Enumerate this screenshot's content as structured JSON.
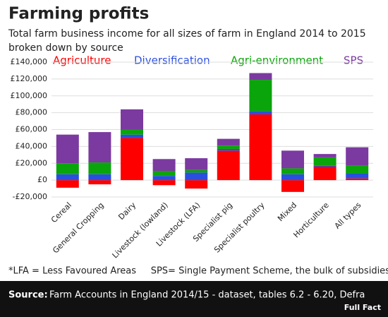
{
  "chart_data": {
    "type": "stacked_bar",
    "title": "Farming profits",
    "subtitle": [
      "Total farm business income for all sizes of farm in England 2014 to 2015",
      "broken down by source"
    ],
    "categories": [
      "Cereal",
      "General Cropping",
      "Dairy",
      "Livestock (lowland)",
      "Livestock (LFA)",
      "Specialist pig",
      "Specialist poultry",
      "Mixed",
      "Horticulture",
      "All types"
    ],
    "series": [
      {
        "name": "Agriculture",
        "color": "#ff0000",
        "values": [
          -9000,
          -5000,
          50000,
          -6000,
          -10000,
          35000,
          78000,
          -14000,
          16000,
          2000
        ]
      },
      {
        "name": "Diversification",
        "color": "#2a4fe0",
        "values": [
          7000,
          7000,
          4000,
          5000,
          9000,
          2000,
          4000,
          7000,
          1000,
          6000
        ]
      },
      {
        "name": "Agri-environment",
        "color": "#0aa50a",
        "values": [
          13000,
          14000,
          6000,
          6000,
          3000,
          4000,
          37000,
          7000,
          10000,
          9000
        ]
      },
      {
        "name": "SPS",
        "color": "#7b3aa0",
        "values": [
          34000,
          36000,
          24000,
          14000,
          14000,
          8000,
          8000,
          21000,
          4000,
          22000
        ]
      }
    ],
    "ylim": [
      -20000,
      140000
    ],
    "yticks": [
      {
        "value": -20000,
        "label": "-£20,000"
      },
      {
        "value": 0,
        "label": "£0"
      },
      {
        "value": 20000,
        "label": "£20,000"
      },
      {
        "value": 40000,
        "label": "£40,000"
      },
      {
        "value": 60000,
        "label": "£60,000"
      },
      {
        "value": 80000,
        "label": "£80,000"
      },
      {
        "value": 100000,
        "label": "£100,000"
      },
      {
        "value": 120000,
        "label": "£120,000"
      },
      {
        "value": 140000,
        "label": "£140,000"
      }
    ],
    "grid": true,
    "footnote": "*LFA = Less Favoured Areas     SPS= Single Payment Scheme, the bulk of subsidies",
    "source_label": "Source:",
    "source": "Farm Accounts in England 2014/15 - dataset, tables 6.2 - 6.20, Defra",
    "logo": "Full Fact"
  }
}
